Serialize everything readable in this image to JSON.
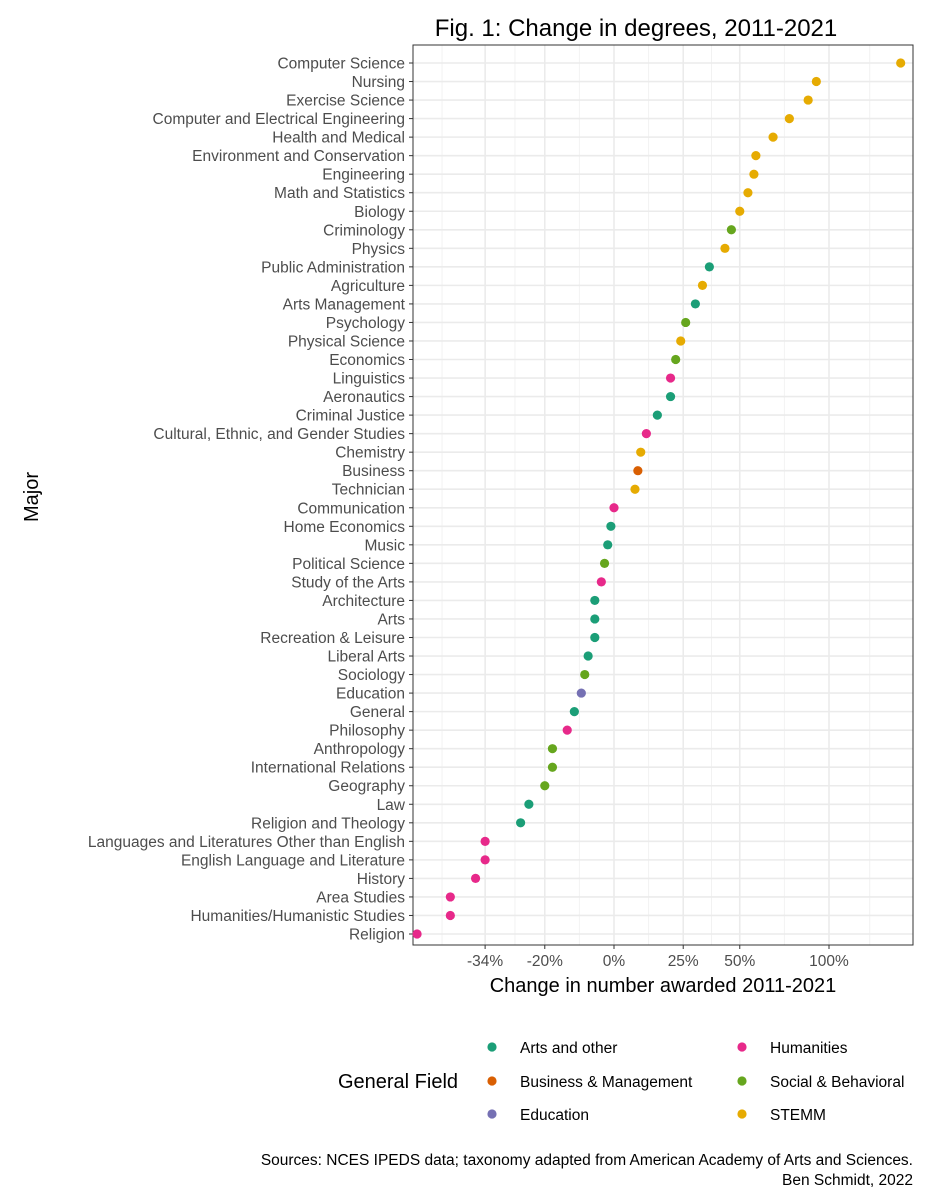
{
  "chart_data": {
    "type": "scatter",
    "title": "Fig. 1: Change in degrees, 2011-2021",
    "xlabel": "Change in number awarded 2011-2021",
    "ylabel": "Major",
    "x_scale": "log of ratio (value = percent change)",
    "x_ticks": [
      -34,
      -20,
      0,
      25,
      50,
      100
    ],
    "x_tick_labels": [
      "-34%",
      "-20%",
      "0%",
      "25%",
      "50%",
      "100%"
    ],
    "xlim": [
      -50,
      160
    ],
    "grid": true,
    "legend": {
      "title": "General Field",
      "placement": "bottom",
      "entries": [
        {
          "label": "Arts and other",
          "color": "#1b9e77"
        },
        {
          "label": "Humanities",
          "color": "#e7298a"
        },
        {
          "label": "Business & Management",
          "color": "#d95f02"
        },
        {
          "label": "Social & Behavioral",
          "color": "#66a61e"
        },
        {
          "label": "Education",
          "color": "#7570b3"
        },
        {
          "label": "STEMM",
          "color": "#e6ab02"
        }
      ]
    },
    "caption": [
      "Sources: NCES IPEDS data; taxonomy adapted from American Academy of Arts and Sciences.",
      "Ben Schmidt, 2022"
    ],
    "points": [
      {
        "major": "Computer Science",
        "value": 152,
        "field": "STEMM"
      },
      {
        "major": "Nursing",
        "value": 92,
        "field": "STEMM"
      },
      {
        "major": "Exercise Science",
        "value": 87,
        "field": "STEMM"
      },
      {
        "major": "Computer and Electrical Engineering",
        "value": 76,
        "field": "STEMM"
      },
      {
        "major": "Health and Medical",
        "value": 67,
        "field": "STEMM"
      },
      {
        "major": "Environment and Conservation",
        "value": 58,
        "field": "STEMM"
      },
      {
        "major": "Engineering",
        "value": 57,
        "field": "STEMM"
      },
      {
        "major": "Math and Statistics",
        "value": 54,
        "field": "STEMM"
      },
      {
        "major": "Biology",
        "value": 50,
        "field": "STEMM"
      },
      {
        "major": "Criminology",
        "value": 46,
        "field": "Social & Behavioral"
      },
      {
        "major": "Physics",
        "value": 43,
        "field": "STEMM"
      },
      {
        "major": "Public Administration",
        "value": 36,
        "field": "Arts and other"
      },
      {
        "major": "Agriculture",
        "value": 33,
        "field": "STEMM"
      },
      {
        "major": "Arts Management",
        "value": 30,
        "field": "Arts and other"
      },
      {
        "major": "Psychology",
        "value": 26,
        "field": "Social & Behavioral"
      },
      {
        "major": "Physical Science",
        "value": 24,
        "field": "STEMM"
      },
      {
        "major": "Economics",
        "value": 22,
        "field": "Social & Behavioral"
      },
      {
        "major": "Linguistics",
        "value": 20,
        "field": "Humanities"
      },
      {
        "major": "Aeronautics",
        "value": 20,
        "field": "Arts and other"
      },
      {
        "major": "Criminal Justice",
        "value": 15,
        "field": "Arts and other"
      },
      {
        "major": "Cultural, Ethnic, and Gender Studies",
        "value": 11,
        "field": "Humanities"
      },
      {
        "major": "Chemistry",
        "value": 9,
        "field": "STEMM"
      },
      {
        "major": "Business",
        "value": 8,
        "field": "Business & Management"
      },
      {
        "major": "Technician",
        "value": 7,
        "field": "STEMM"
      },
      {
        "major": "Communication",
        "value": 0,
        "field": "Humanities"
      },
      {
        "major": "Home Economics",
        "value": -1,
        "field": "Arts and other"
      },
      {
        "major": "Music",
        "value": -2,
        "field": "Arts and other"
      },
      {
        "major": "Political Science",
        "value": -3,
        "field": "Social & Behavioral"
      },
      {
        "major": "Study of the Arts",
        "value": -4,
        "field": "Humanities"
      },
      {
        "major": "Architecture",
        "value": -6,
        "field": "Arts and other"
      },
      {
        "major": "Arts",
        "value": -6,
        "field": "Arts and other"
      },
      {
        "major": "Recreation & Leisure",
        "value": -6,
        "field": "Arts and other"
      },
      {
        "major": "Liberal Arts",
        "value": -8,
        "field": "Arts and other"
      },
      {
        "major": "Sociology",
        "value": -9,
        "field": "Social & Behavioral"
      },
      {
        "major": "Education",
        "value": -10,
        "field": "Education"
      },
      {
        "major": "General",
        "value": -12,
        "field": "Arts and other"
      },
      {
        "major": "Philosophy",
        "value": -14,
        "field": "Humanities"
      },
      {
        "major": "Anthropology",
        "value": -18,
        "field": "Social & Behavioral"
      },
      {
        "major": "International Relations",
        "value": -18,
        "field": "Social & Behavioral"
      },
      {
        "major": "Geography",
        "value": -20,
        "field": "Social & Behavioral"
      },
      {
        "major": "Law",
        "value": -24,
        "field": "Arts and other"
      },
      {
        "major": "Religion and Theology",
        "value": -26,
        "field": "Arts and other"
      },
      {
        "major": "Languages and Literatures Other than English",
        "value": -34,
        "field": "Humanities"
      },
      {
        "major": "English Language and Literature",
        "value": -34,
        "field": "Humanities"
      },
      {
        "major": "History",
        "value": -36,
        "field": "Humanities"
      },
      {
        "major": "Area Studies",
        "value": -41,
        "field": "Humanities"
      },
      {
        "major": "Humanities/Humanistic Studies",
        "value": -41,
        "field": "Humanities"
      },
      {
        "major": "Religion",
        "value": -47,
        "field": "Humanities"
      }
    ]
  }
}
